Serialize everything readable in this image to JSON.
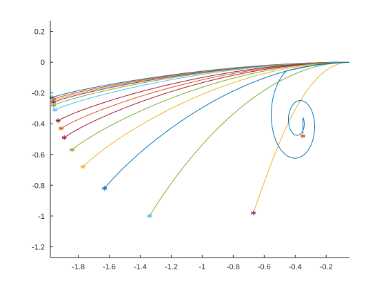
{
  "chart_data": {
    "type": "line",
    "title": "",
    "xlabel": "",
    "ylabel": "",
    "xlim": [
      -1.98,
      -0.05
    ],
    "ylim": [
      -1.27,
      0.27
    ],
    "grid": false,
    "legend": false,
    "x_ticks": [
      -1.8,
      -1.6,
      -1.4,
      -1.2,
      -1,
      -0.8,
      -0.6,
      -0.4,
      -0.2
    ],
    "x_tick_labels": [
      "-1.8",
      "-1.6",
      "-1.4",
      "-1.2",
      "-1",
      "-0.8",
      "-0.6",
      "-0.4",
      "-0.2"
    ],
    "y_ticks": [
      0.2,
      0,
      -0.2,
      -0.4,
      -0.6,
      -0.8,
      -1,
      -1.2
    ],
    "y_tick_labels": [
      "0.2",
      "0",
      "-0.2",
      "-0.4",
      "-0.6",
      "-0.8",
      "-1",
      "-1.2"
    ],
    "curve_start": [
      -0.05,
      0.0
    ],
    "marker": "asterisk",
    "series": [
      {
        "color": "#0072BD",
        "end": [
          -1.97,
          -0.23
        ],
        "bulge": 0.0
      },
      {
        "color": "#D95319",
        "end": [
          -1.96,
          -0.24
        ],
        "bulge": 0.0
      },
      {
        "color": "#EDB120",
        "end": [
          -1.96,
          -0.25
        ],
        "bulge": 0.0
      },
      {
        "color": "#7E2F8E",
        "end": [
          -1.96,
          -0.26
        ],
        "bulge": 0.01
      },
      {
        "color": "#77AC30",
        "end": [
          -1.96,
          -0.28
        ],
        "bulge": 0.01
      },
      {
        "color": "#4DBEEE",
        "end": [
          -1.95,
          -0.31
        ],
        "bulge": 0.02
      },
      {
        "color": "#A2142F",
        "end": [
          -1.93,
          -0.38
        ],
        "bulge": 0.03
      },
      {
        "color": "#D95319",
        "end": [
          -1.91,
          -0.43
        ],
        "bulge": 0.04
      },
      {
        "color": "#A2142F",
        "end": [
          -1.89,
          -0.49
        ],
        "bulge": 0.05
      },
      {
        "color": "#77AC30",
        "end": [
          -1.84,
          -0.57
        ],
        "bulge": 0.07
      },
      {
        "color": "#EDB120",
        "end": [
          -1.77,
          -0.68
        ],
        "bulge": 0.1
      },
      {
        "color": "#0072BD",
        "end": [
          -1.63,
          -0.82
        ],
        "bulge": 0.14
      },
      {
        "color": "#77AC30",
        "end": [
          -1.34,
          -1.0
        ],
        "bulge": 0.22
      },
      {
        "color": "#EDB120",
        "end": [
          -0.67,
          -0.98
        ],
        "bulge": 0.45
      },
      {
        "color": "#0072BD",
        "end": [
          -0.35,
          -0.48
        ],
        "spiral": true
      }
    ],
    "end_marker_colors": [
      "#0072BD",
      "#D95319",
      "#EDB120",
      "#7E2F8E",
      "#77AC30",
      "#4DBEEE",
      "#A2142F",
      "#D95319",
      "#A2142F",
      "#77AC30",
      "#EDB120",
      "#0072BD",
      "#4DBEEE",
      "#7E2F8E",
      "#D95319"
    ]
  }
}
